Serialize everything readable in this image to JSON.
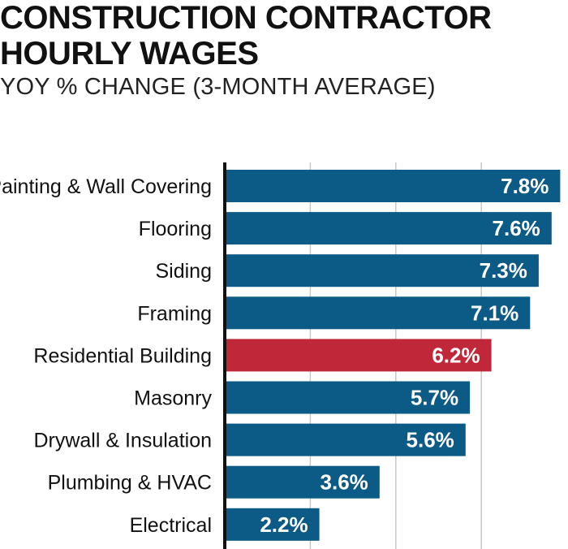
{
  "title_line1": "CONSTRUCTION CONTRACTOR",
  "title_line2": "HOURLY WAGES",
  "subtitle": "YOY % CHANGE (3-MONTH AVERAGE)",
  "colors": {
    "bar": "#0c5a86",
    "highlight": "#c0283a",
    "grid": "#c8c8c8",
    "axis": "#111111",
    "label_text": "#111111",
    "value_text": "#ffffff"
  },
  "chart_data": {
    "type": "bar",
    "orientation": "horizontal",
    "categories": [
      "Painting & Wall Covering",
      "Flooring",
      "Siding",
      "Framing",
      "Residential Building",
      "Masonry",
      "Drywall & Insulation",
      "Plumbing & HVAC",
      "Electrical"
    ],
    "values": [
      7.8,
      7.6,
      7.3,
      7.1,
      6.2,
      5.7,
      5.6,
      3.6,
      2.2
    ],
    "value_labels": [
      "7.8%",
      "7.6%",
      "7.3%",
      "7.1%",
      "6.2%",
      "5.7%",
      "5.6%",
      "3.6%",
      "2.2%"
    ],
    "highlight_category": "Residential Building",
    "xlim": [
      0,
      8
    ],
    "grid": true,
    "title": "CONSTRUCTION CONTRACTOR HOURLY WAGES",
    "subtitle": "YOY % CHANGE (3-MONTH AVERAGE)",
    "xlabel": "",
    "ylabel": ""
  }
}
